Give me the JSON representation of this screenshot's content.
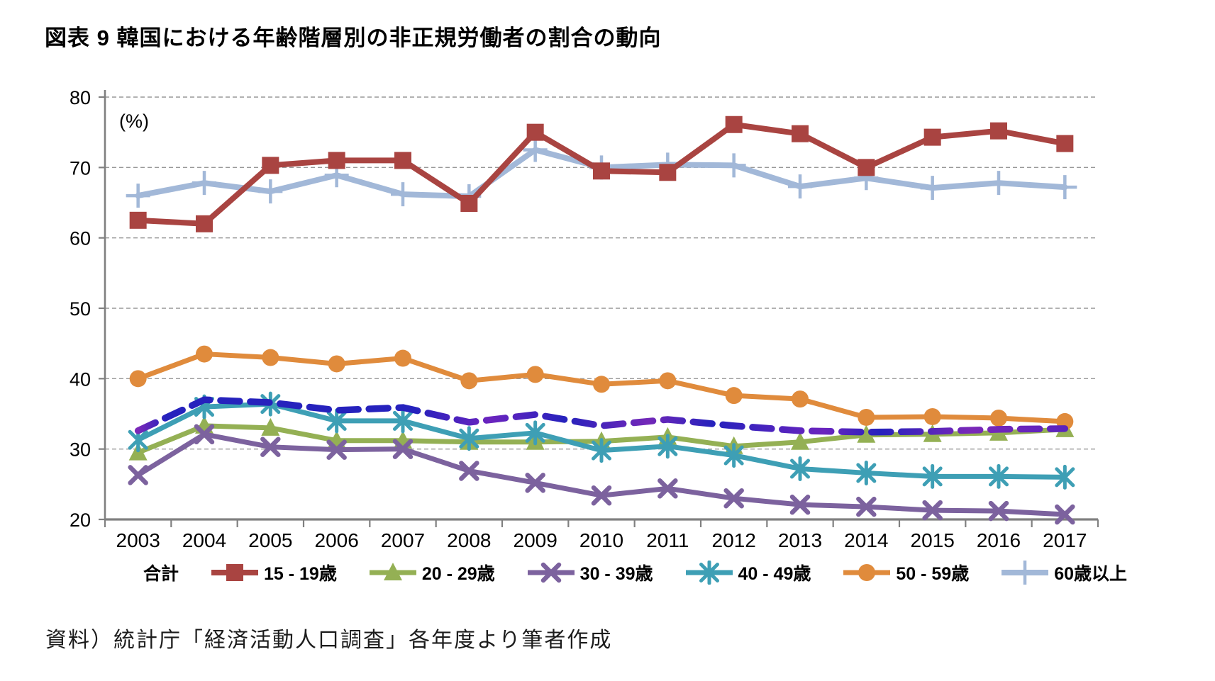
{
  "page": {
    "title": "図表 9 韓国における年齢階層別の非正規労働者の割合の動向",
    "source": "資料）統計庁「経済活動人口調査」各年度より筆者作成"
  },
  "chart_data": {
    "type": "line",
    "title": "図表 9 韓国における年齢階層別の非正規労働者の割合の動向",
    "unit_label": "(%)",
    "x": [
      "2003",
      "2004",
      "2005",
      "2006",
      "2007",
      "2008",
      "2009",
      "2010",
      "2011",
      "2012",
      "2013",
      "2014",
      "2015",
      "2016",
      "2017"
    ],
    "ylim": [
      20,
      80
    ],
    "ytick_step": 10,
    "grid": "horizontal-dashed",
    "legend_position": "bottom",
    "axis_color": "#808080",
    "gridline_color": "#999999",
    "series": [
      {
        "name": "合計",
        "color": "#2622bd",
        "color2": "#7a28b8",
        "style": "dashed",
        "marker": "none",
        "values": [
          32.6,
          37.0,
          36.6,
          35.5,
          35.9,
          33.8,
          34.9,
          33.3,
          34.2,
          33.3,
          32.6,
          32.4,
          32.5,
          32.8,
          32.9
        ]
      },
      {
        "name": "15 - 19歳",
        "color": "#a94441",
        "style": "solid",
        "marker": "square",
        "values": [
          62.5,
          62.0,
          70.3,
          71.0,
          71.0,
          64.9,
          75.0,
          69.5,
          69.3,
          76.1,
          74.8,
          70.0,
          74.3,
          75.2,
          73.4
        ]
      },
      {
        "name": "20 - 29歳",
        "color": "#94b054",
        "style": "solid",
        "marker": "triangle",
        "values": [
          29.5,
          33.3,
          33.0,
          31.2,
          31.2,
          31.0,
          31.0,
          31.1,
          31.7,
          30.4,
          31.0,
          32.0,
          32.1,
          32.3,
          32.8
        ]
      },
      {
        "name": "30 - 39歳",
        "color": "#7c629e",
        "style": "solid",
        "marker": "x",
        "values": [
          26.3,
          32.1,
          30.3,
          29.9,
          30.0,
          26.9,
          25.2,
          23.4,
          24.4,
          23.0,
          22.1,
          21.8,
          21.3,
          21.2,
          20.7
        ]
      },
      {
        "name": "40 - 49歳",
        "color": "#3e9fb5",
        "style": "solid",
        "marker": "asterisk",
        "values": [
          31.3,
          36.0,
          36.4,
          34.0,
          34.0,
          31.5,
          32.3,
          29.8,
          30.4,
          29.1,
          27.2,
          26.6,
          26.1,
          26.1,
          26.0
        ]
      },
      {
        "name": "50 - 59歳",
        "color": "#e08b3c",
        "style": "solid",
        "marker": "circle",
        "values": [
          40.0,
          43.5,
          43.0,
          42.1,
          42.9,
          39.7,
          40.6,
          39.2,
          39.7,
          37.6,
          37.1,
          34.5,
          34.6,
          34.4,
          33.9
        ]
      },
      {
        "name": "60歳以上",
        "color": "#a2b8d8",
        "style": "solid",
        "marker": "plus",
        "values": [
          66.0,
          67.8,
          66.6,
          68.9,
          66.2,
          65.9,
          72.5,
          70.0,
          70.4,
          70.3,
          67.3,
          68.5,
          67.1,
          67.8,
          67.2
        ]
      }
    ]
  }
}
